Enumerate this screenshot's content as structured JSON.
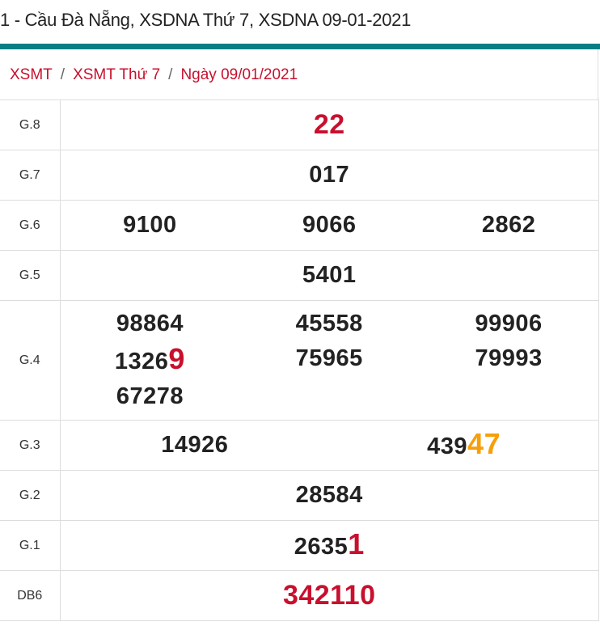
{
  "header": {
    "title": "1 - Cầu Đà Nẵng, XSDNA Thứ 7, XSDNA 09-01-2021",
    "accent": "#077f84"
  },
  "breadcrumb": [
    "XSMT",
    "XSMT Thứ 7",
    "Ngày 09/01/2021"
  ],
  "colors": {
    "red": "#c8102e",
    "orange": "#f5a00a"
  },
  "prizes": [
    {
      "label": "G.8",
      "cols": [
        [
          {
            "plain": "",
            "highlight": "22",
            "color": "#c8102e"
          }
        ]
      ]
    },
    {
      "label": "G.7",
      "cols": [
        [
          {
            "plain": "017",
            "highlight": ""
          }
        ]
      ]
    },
    {
      "label": "G.6",
      "cols": [
        [
          {
            "plain": "9100",
            "highlight": ""
          }
        ],
        [
          {
            "plain": "9066",
            "highlight": ""
          }
        ],
        [
          {
            "plain": "2862",
            "highlight": ""
          }
        ]
      ]
    },
    {
      "label": "G.5",
      "cols": [
        [
          {
            "plain": "5401",
            "highlight": ""
          }
        ]
      ]
    },
    {
      "label": "G.4",
      "cols": [
        [
          {
            "plain": "98864",
            "highlight": ""
          },
          {
            "plain": "1326",
            "highlight": "9",
            "color": "#c8102e"
          },
          {
            "plain": "67278",
            "highlight": ""
          }
        ],
        [
          {
            "plain": "45558",
            "highlight": ""
          },
          {
            "plain": "75965",
            "highlight": ""
          }
        ],
        [
          {
            "plain": "99906",
            "highlight": ""
          },
          {
            "plain": "79993",
            "highlight": ""
          }
        ]
      ]
    },
    {
      "label": "G.3",
      "cols": [
        [
          {
            "plain": "14926",
            "highlight": ""
          }
        ],
        [
          {
            "plain": "439",
            "highlight": "47",
            "color": "#f5a00a"
          }
        ]
      ]
    },
    {
      "label": "G.2",
      "cols": [
        [
          {
            "plain": "28584",
            "highlight": ""
          }
        ]
      ]
    },
    {
      "label": "G.1",
      "cols": [
        [
          {
            "plain": "2635",
            "highlight": "1",
            "color": "#c8102e"
          }
        ]
      ]
    },
    {
      "label": "DB6",
      "cols": [
        [
          {
            "plain": "",
            "highlight": "342110",
            "color": "#c8102e"
          }
        ]
      ]
    }
  ]
}
